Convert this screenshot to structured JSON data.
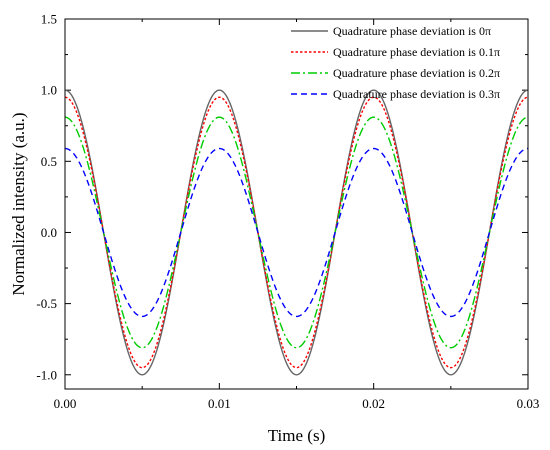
{
  "chart_data": {
    "type": "line",
    "xlabel": "Time (s)",
    "ylabel": "Normalized intensity (a.u.)",
    "xlim": [
      0,
      0.03
    ],
    "ylim": [
      -1.1,
      1.5
    ],
    "xticks": [
      0,
      0.01,
      0.02,
      0.03
    ],
    "xtick_labels": [
      "0.00",
      "0.01",
      "0.02",
      "0.03"
    ],
    "yticks": [
      -1.0,
      -0.5,
      0.0,
      0.5,
      1.0,
      1.5
    ],
    "ytick_labels": [
      "-1.0",
      "-0.5",
      "0.0",
      "0.5",
      "1.0",
      "1.5"
    ],
    "grid": false,
    "legend_position": "top-right",
    "frequency_hz": 100,
    "series": [
      {
        "name": "Quadrature phase deviation is 0π",
        "amplitude": 1.0,
        "color": "#666666",
        "style": "solid"
      },
      {
        "name": "Quadrature phase deviation is 0.1π",
        "amplitude": 0.95,
        "color": "#ff0000",
        "style": "dotted"
      },
      {
        "name": "Quadrature phase deviation is 0.2π",
        "amplitude": 0.81,
        "color": "#00cc00",
        "style": "dashdot"
      },
      {
        "name": "Quadrature phase deviation is 0.3π",
        "amplitude": 0.59,
        "color": "#0000ff",
        "style": "dashed"
      }
    ]
  }
}
